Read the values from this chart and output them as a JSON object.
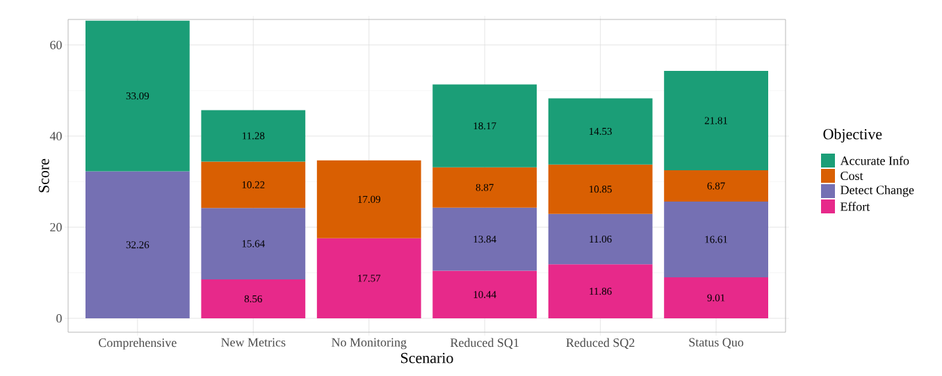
{
  "chart_data": {
    "type": "bar",
    "stacked": true,
    "xlabel": "Scenario",
    "ylabel": "Score",
    "legend_title": "Objective",
    "legend": "right",
    "grid": true,
    "data_labels": true,
    "categories": [
      "Comprehensive",
      "New Metrics",
      "No Monitoring",
      "Reduced SQ1",
      "Reduced SQ2",
      "Status Quo"
    ],
    "ylim": [
      -3.05,
      65.6
    ],
    "yticks": [
      0,
      20,
      40,
      60
    ],
    "series": [
      {
        "name": "Effort",
        "color": "#e7298a",
        "values": [
          null,
          8.56,
          17.57,
          10.44,
          11.86,
          9.01
        ]
      },
      {
        "name": "Detect Change",
        "color": "#7570b3",
        "values": [
          32.26,
          15.64,
          null,
          13.84,
          11.06,
          16.61
        ]
      },
      {
        "name": "Cost",
        "color": "#d95f02",
        "values": [
          null,
          10.22,
          17.09,
          8.87,
          10.85,
          6.87
        ]
      },
      {
        "name": "Accurate Info",
        "color": "#1b9e77",
        "values": [
          33.09,
          11.28,
          null,
          18.17,
          14.53,
          21.81
        ]
      }
    ]
  }
}
